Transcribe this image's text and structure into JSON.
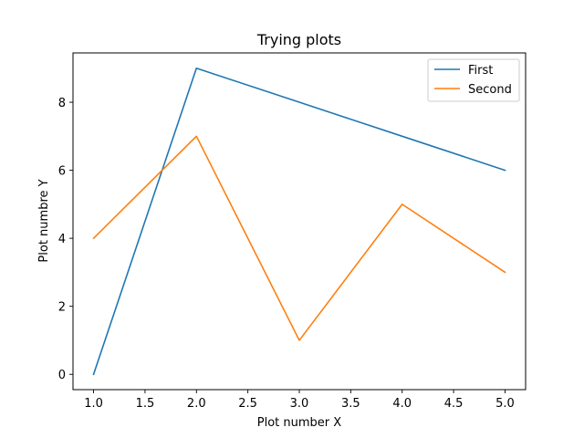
{
  "chart_data": {
    "type": "line",
    "title": "Trying plots",
    "xlabel": "Plot number X",
    "ylabel": "Plot numbre Y",
    "xlim": [
      0.8,
      5.2
    ],
    "ylim": [
      -0.45,
      9.45
    ],
    "xticks": [
      1.0,
      1.5,
      2.0,
      2.5,
      3.0,
      3.5,
      4.0,
      4.5,
      5.0
    ],
    "xtick_labels": [
      "1.0",
      "1.5",
      "2.0",
      "2.5",
      "3.0",
      "3.5",
      "4.0",
      "4.5",
      "5.0"
    ],
    "yticks": [
      0,
      2,
      4,
      6,
      8
    ],
    "ytick_labels": [
      "0",
      "2",
      "4",
      "6",
      "8"
    ],
    "grid": false,
    "legend_position": "top-right",
    "x": [
      1,
      2,
      3,
      4,
      5
    ],
    "series": [
      {
        "name": "First",
        "values": [
          0,
          9,
          8,
          7,
          6
        ],
        "color": "#1f77b4"
      },
      {
        "name": "Second",
        "values": [
          4,
          7,
          1,
          5,
          3
        ],
        "color": "#ff7f0e"
      }
    ]
  }
}
